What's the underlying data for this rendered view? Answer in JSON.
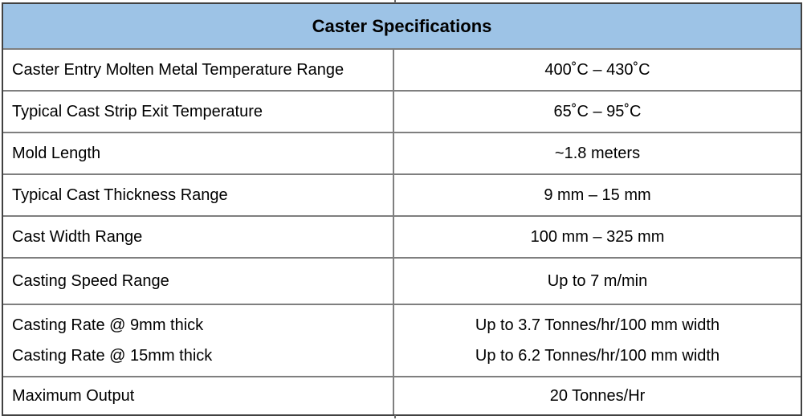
{
  "table": {
    "title": "Caster Specifications",
    "colors": {
      "header_bg": "#9DC3E6",
      "inner_border": "#7F7F7F",
      "outer_border": "#414141",
      "text": "#000000"
    },
    "rows": [
      {
        "label": "Caster Entry Molten Metal Temperature Range",
        "value": "400˚C – 430˚C"
      },
      {
        "label": "Typical Cast Strip Exit Temperature",
        "value": "65˚C – 95˚C"
      },
      {
        "label": "Mold Length",
        "value": "~1.8 meters"
      },
      {
        "label": "Typical Cast Thickness Range",
        "value": "9 mm – 15 mm"
      },
      {
        "label": "Cast Width Range",
        "value": "100 mm – 325 mm"
      },
      {
        "label": "Casting Speed Range",
        "value": "Up to 7 m/min"
      }
    ],
    "rate_row": [
      {
        "label": "Casting Rate @ 9mm thick",
        "value": "Up to 3.7 Tonnes/hr/100 mm width"
      },
      {
        "label": "Casting Rate @ 15mm thick",
        "value": "Up to 6.2 Tonnes/hr/100 mm width"
      }
    ],
    "output_row": {
      "label": "Maximum Output",
      "value": "20 Tonnes/Hr"
    }
  }
}
